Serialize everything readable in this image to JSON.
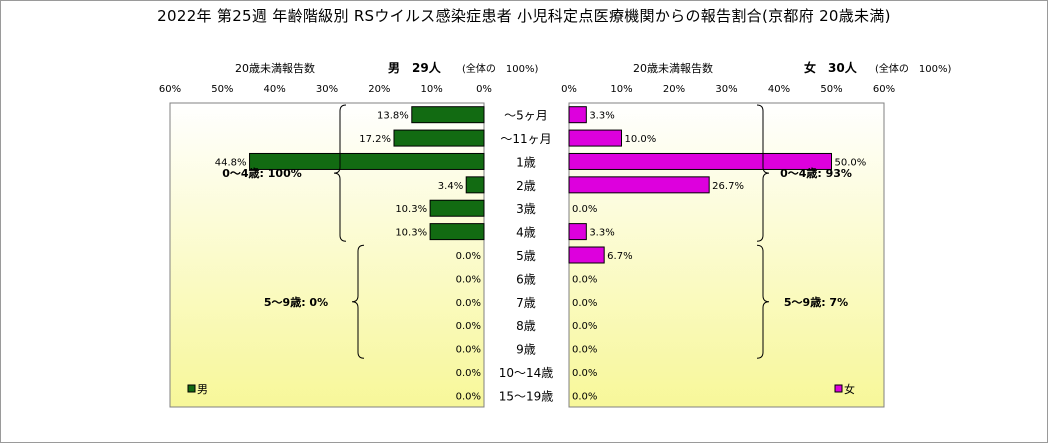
{
  "title": "2022年 第25週 年齢階級別 RSウイルス感染症患者 小児科定点医療機関からの報告割合(京都府 20歳未満)",
  "chart_data": [
    {
      "type": "bar",
      "orientation": "horizontal",
      "panel": "male",
      "direction": "right-to-left",
      "axis_title": "20歳未満報告数",
      "header": "男　29人",
      "header_note": "(全体の　100%)",
      "categories": [
        "～5ヶ月",
        "～11ヶ月",
        "1歳",
        "2歳",
        "3歳",
        "4歳",
        "5歳",
        "6歳",
        "7歳",
        "8歳",
        "9歳",
        "10～14歳",
        "15～19歳"
      ],
      "series": [
        {
          "name": "男",
          "color": "#126b12",
          "values": [
            13.8,
            17.2,
            44.8,
            3.4,
            10.3,
            10.3,
            0,
            0,
            0,
            0,
            0,
            0,
            0
          ]
        }
      ],
      "data_labels": [
        "13.8%",
        "17.2%",
        "44.8%",
        "3.4%",
        "10.3%",
        "10.3%",
        "0.0%",
        "0.0%",
        "0.0%",
        "0.0%",
        "0.0%",
        "0.0%",
        "0.0%"
      ],
      "xlim": [
        0,
        60
      ],
      "xticks": [
        "60%",
        "50%",
        "40%",
        "30%",
        "20%",
        "10%",
        "0%"
      ],
      "groups": [
        {
          "label": "0～4歳: 100%",
          "from": "～5ヶ月",
          "to": "4歳"
        },
        {
          "label": "5～9歳: 0%",
          "from": "5歳",
          "to": "9歳"
        }
      ],
      "legend": "bottom-left"
    },
    {
      "type": "bar",
      "orientation": "horizontal",
      "panel": "female",
      "direction": "left-to-right",
      "axis_title": "20歳未満報告数",
      "header": "女　30人",
      "header_note": "(全体の　100%)",
      "categories": [
        "～5ヶ月",
        "～11ヶ月",
        "1歳",
        "2歳",
        "3歳",
        "4歳",
        "5歳",
        "6歳",
        "7歳",
        "8歳",
        "9歳",
        "10～14歳",
        "15～19歳"
      ],
      "series": [
        {
          "name": "女",
          "color": "#dd00dd",
          "values": [
            3.3,
            10.0,
            50.0,
            26.7,
            0,
            3.3,
            6.7,
            0,
            0,
            0,
            0,
            0,
            0
          ]
        }
      ],
      "data_labels": [
        "3.3%",
        "10.0%",
        "50.0%",
        "26.7%",
        "0.0%",
        "3.3%",
        "6.7%",
        "0.0%",
        "0.0%",
        "0.0%",
        "0.0%",
        "0.0%",
        "0.0%"
      ],
      "xlim": [
        0,
        60
      ],
      "xticks": [
        "0%",
        "10%",
        "20%",
        "30%",
        "40%",
        "50%",
        "60%"
      ],
      "groups": [
        {
          "label": "0～4歳: 93%",
          "from": "～5ヶ月",
          "to": "4歳"
        },
        {
          "label": "5～9歳: 7%",
          "from": "5歳",
          "to": "9歳"
        }
      ],
      "legend": "bottom-right"
    }
  ]
}
